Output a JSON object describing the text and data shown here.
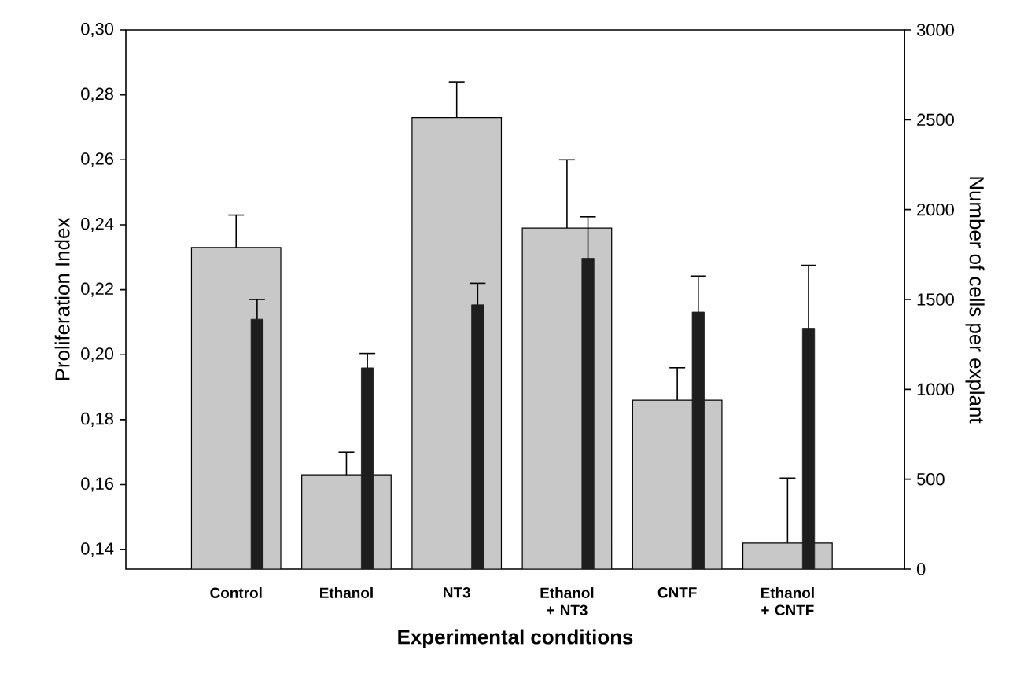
{
  "chart_data": {
    "type": "bar",
    "xlabel": "Experimental conditions",
    "ylabel": "Proliferation Index",
    "y2label": "Number of cells per explant",
    "categories": [
      "Control",
      "Ethanol",
      "NT3",
      "Ethanol + NT3",
      "CNTF",
      "Ethanol + CNTF"
    ],
    "series": [
      {
        "color": "#c8c8c8",
        "values": [
          0.233,
          0.163,
          0.273,
          0.239,
          0.186,
          0.142
        ],
        "errors": [
          [
            0.233,
            0.243
          ],
          [
            0.163,
            0.17
          ],
          [
            0.273,
            0.284
          ],
          [
            0.239,
            0.26
          ],
          [
            0.186,
            0.196
          ],
          [
            0.142,
            0.162
          ]
        ]
      },
      {
        "color": "#1e1e1e",
        "axis": "y2",
        "values": [
          1390,
          1120,
          1470,
          1730,
          1430,
          1340
        ],
        "errors": [
          [
            1390,
            1500
          ],
          [
            1120,
            1200
          ],
          [
            1470,
            1590
          ],
          [
            1730,
            1960
          ],
          [
            1430,
            1630
          ],
          [
            1340,
            1690
          ]
        ]
      }
    ],
    "ylim": [
      0.134,
      0.3
    ],
    "yticks": [
      {
        "value": 0.14,
        "label": "0,14"
      },
      {
        "value": 0.16,
        "label": "0,16"
      },
      {
        "value": 0.18,
        "label": "0,18"
      },
      {
        "value": 0.2,
        "label": "0,20"
      },
      {
        "value": 0.22,
        "label": "0,22"
      },
      {
        "value": 0.24,
        "label": "0,24"
      },
      {
        "value": 0.26,
        "label": "0,26"
      },
      {
        "value": 0.28,
        "label": "0,28"
      },
      {
        "value": 0.3,
        "label": "0,30"
      }
    ],
    "y2lim": [
      0,
      3000
    ],
    "y2ticks": [
      0,
      500,
      1000,
      1500,
      2000,
      2500,
      3000
    ]
  }
}
